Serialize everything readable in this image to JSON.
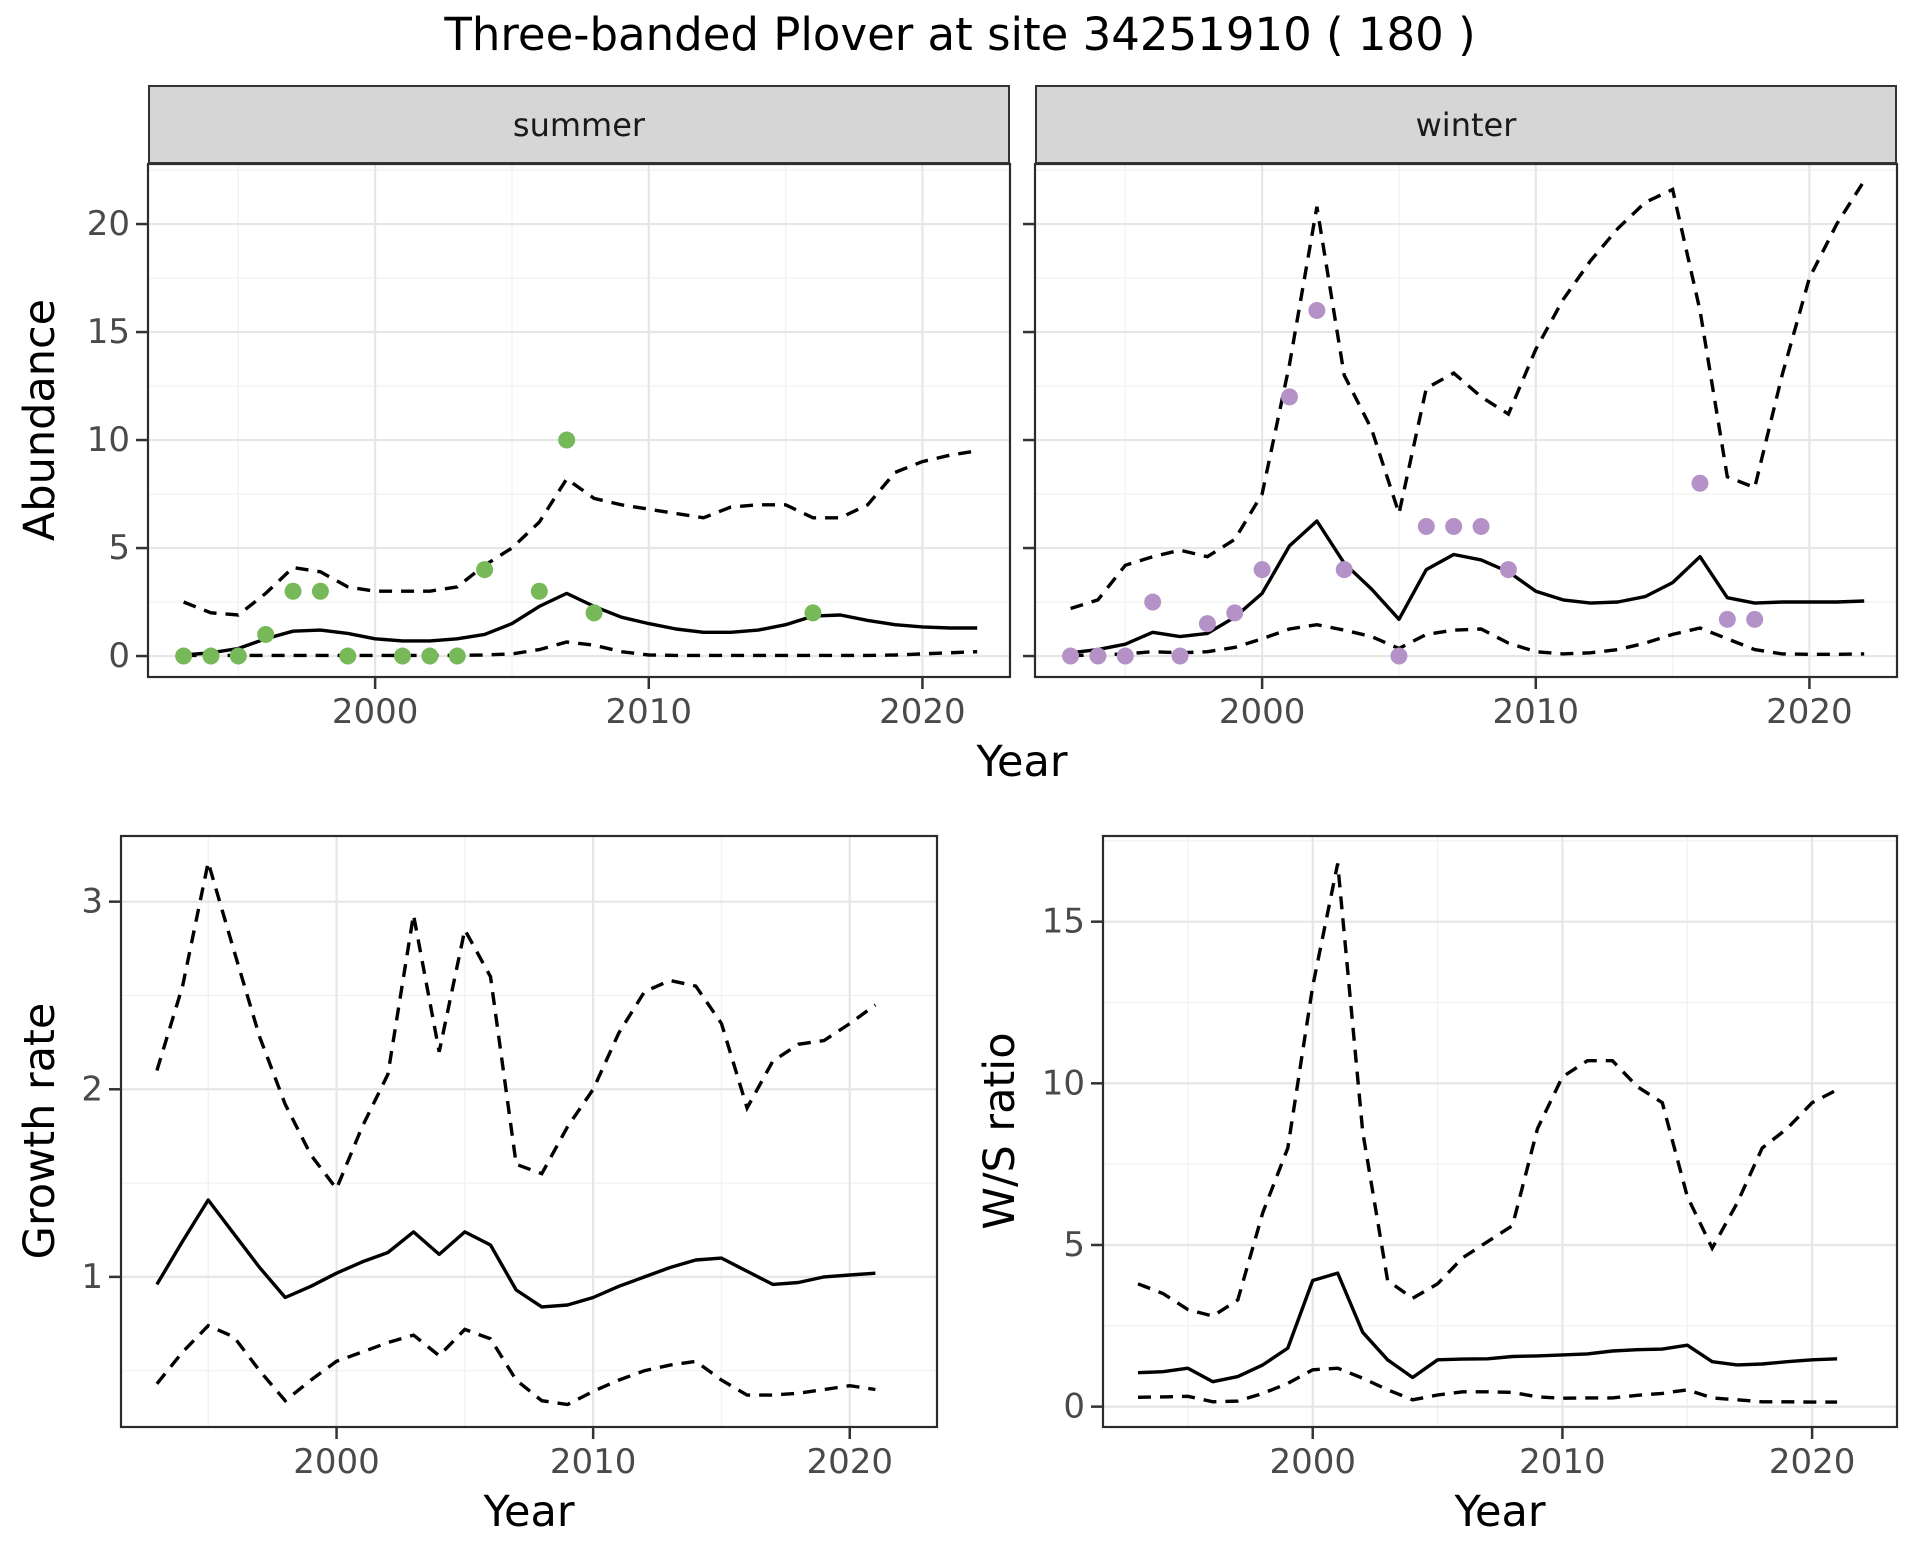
{
  "title": "Three-banded Plover at site 34251910 ( 180 )",
  "labels": {
    "facet_summer": "summer",
    "facet_winter": "winter",
    "abundance": "Abundance",
    "growth_rate": "Growth rate",
    "ws_ratio": "W/S ratio",
    "year": "Year"
  },
  "colors": {
    "line": "#000000",
    "summer_points": "#77b958",
    "winter_points": "#b492c7",
    "strip_bg": "#d6d6d6",
    "strip_border": "#333333",
    "panel_border": "#2b2b2b",
    "grid_major": "#e6e6e6",
    "grid_minor": "#f2f2f2",
    "tick_mark": "#333333",
    "tick_text": "#4a4a4a"
  },
  "chart_data": [
    {
      "id": "abundance-summer",
      "type": "line",
      "facet": "summer",
      "xlabel": "Year",
      "ylabel": "Abundance",
      "xlim": [
        1991.7,
        2023.2
      ],
      "ylim": [
        -0.97,
        22.78
      ],
      "x_ticks": [
        2000,
        2010,
        2020
      ],
      "y_ticks": [
        0,
        5,
        10,
        15,
        20
      ],
      "x_minor": [
        1995,
        2005,
        2015
      ],
      "y_minor": [
        2.5,
        7.5,
        12.5,
        17.5,
        22.5
      ],
      "point_color": "#77b958",
      "years": [
        1993,
        1994,
        1995,
        1996,
        1997,
        1998,
        1999,
        2000,
        2001,
        2002,
        2003,
        2004,
        2005,
        2006,
        2007,
        2008,
        2009,
        2010,
        2011,
        2012,
        2013,
        2014,
        2015,
        2016,
        2017,
        2018,
        2019,
        2020,
        2021,
        2022
      ],
      "median": [
        0.05,
        0.15,
        0.35,
        0.8,
        1.15,
        1.2,
        1.05,
        0.8,
        0.7,
        0.7,
        0.8,
        1.0,
        1.5,
        2.3,
        2.9,
        2.3,
        1.8,
        1.5,
        1.25,
        1.1,
        1.1,
        1.2,
        1.45,
        1.85,
        1.9,
        1.65,
        1.45,
        1.35,
        1.3,
        1.3
      ],
      "upper": [
        2.5,
        2.0,
        1.9,
        2.9,
        4.1,
        3.9,
        3.2,
        3.0,
        3.0,
        3.0,
        3.2,
        4.2,
        5.0,
        6.2,
        8.2,
        7.3,
        7.0,
        6.8,
        6.6,
        6.4,
        6.9,
        7.0,
        7.0,
        6.4,
        6.4,
        7.0,
        8.5,
        9.0,
        9.3,
        9.5
      ],
      "lower": [
        0.03,
        0.03,
        0.03,
        0.03,
        0.03,
        0.03,
        0.03,
        0.03,
        0.03,
        0.03,
        0.03,
        0.05,
        0.1,
        0.3,
        0.65,
        0.5,
        0.2,
        0.05,
        0.03,
        0.03,
        0.03,
        0.03,
        0.03,
        0.03,
        0.03,
        0.03,
        0.05,
        0.1,
        0.15,
        0.2
      ],
      "points": [
        [
          1993,
          0
        ],
        [
          1994,
          0
        ],
        [
          1995,
          0
        ],
        [
          1996,
          1
        ],
        [
          1997,
          3
        ],
        [
          1998,
          3
        ],
        [
          1999,
          0
        ],
        [
          2001,
          0
        ],
        [
          2002,
          0
        ],
        [
          2003,
          0
        ],
        [
          2004,
          4
        ],
        [
          2006,
          3
        ],
        [
          2007,
          10
        ],
        [
          2008,
          2
        ],
        [
          2016,
          2
        ]
      ]
    },
    {
      "id": "abundance-winter",
      "type": "line",
      "facet": "winter",
      "xlabel": "Year",
      "ylabel": "Abundance",
      "xlim": [
        1991.7,
        2023.2
      ],
      "ylim": [
        -0.97,
        22.78
      ],
      "x_ticks": [
        2000,
        2010,
        2020
      ],
      "y_ticks": [
        0,
        5,
        10,
        15,
        20
      ],
      "x_minor": [
        1995,
        2005,
        2015
      ],
      "y_minor": [
        2.5,
        7.5,
        12.5,
        17.5,
        22.5
      ],
      "point_color": "#b492c7",
      "years": [
        1993,
        1994,
        1995,
        1996,
        1997,
        1998,
        1999,
        2000,
        2001,
        2002,
        2003,
        2004,
        2005,
        2006,
        2007,
        2008,
        2009,
        2010,
        2011,
        2012,
        2013,
        2014,
        2015,
        2016,
        2017,
        2018,
        2019,
        2020,
        2021,
        2022
      ],
      "median": [
        0.15,
        0.3,
        0.55,
        1.1,
        0.9,
        1.05,
        1.8,
        2.9,
        5.1,
        6.25,
        4.3,
        3.1,
        1.7,
        4.0,
        4.7,
        4.45,
        3.9,
        3.0,
        2.6,
        2.45,
        2.5,
        2.75,
        3.4,
        4.6,
        2.7,
        2.45,
        2.5,
        2.5,
        2.5,
        2.55
      ],
      "upper": [
        2.2,
        2.6,
        4.2,
        4.6,
        4.9,
        4.6,
        5.4,
        7.5,
        13.5,
        20.8,
        13.0,
        10.5,
        6.6,
        12.4,
        13.1,
        12.0,
        11.2,
        14.2,
        16.5,
        18.3,
        19.8,
        21.0,
        21.6,
        16.0,
        8.3,
        7.8,
        13.0,
        17.5,
        20.0,
        22.0
      ],
      "lower": [
        0.02,
        0.05,
        0.1,
        0.2,
        0.15,
        0.2,
        0.4,
        0.8,
        1.25,
        1.45,
        1.2,
        0.9,
        0.35,
        1.0,
        1.2,
        1.25,
        0.6,
        0.2,
        0.1,
        0.15,
        0.3,
        0.6,
        1.0,
        1.3,
        0.8,
        0.3,
        0.1,
        0.08,
        0.08,
        0.1
      ],
      "points": [
        [
          1993,
          0
        ],
        [
          1994,
          0
        ],
        [
          1995,
          0
        ],
        [
          1996,
          2.5
        ],
        [
          1997,
          0
        ],
        [
          1998,
          1.5
        ],
        [
          1999,
          2
        ],
        [
          2000,
          4
        ],
        [
          2001,
          12
        ],
        [
          2002,
          16
        ],
        [
          2003,
          4
        ],
        [
          2005,
          0
        ],
        [
          2006,
          6
        ],
        [
          2007,
          6
        ],
        [
          2008,
          6
        ],
        [
          2009,
          4
        ],
        [
          2016,
          8
        ],
        [
          2017,
          1.7
        ],
        [
          2018,
          1.7
        ]
      ]
    },
    {
      "id": "growth-rate",
      "type": "line",
      "facet": null,
      "xlabel": "Year",
      "ylabel": "Growth rate",
      "xlim": [
        1991.6,
        2023.4
      ],
      "ylim": [
        0.2,
        3.35
      ],
      "x_ticks": [
        2000,
        2010,
        2020
      ],
      "y_ticks": [
        1,
        2,
        3
      ],
      "x_minor": [
        1995,
        2005,
        2015
      ],
      "y_minor": [
        0.5,
        1.5,
        2.5
      ],
      "point_color": null,
      "years": [
        1993,
        1994,
        1995,
        1996,
        1997,
        1998,
        1999,
        2000,
        2001,
        2002,
        2003,
        2004,
        2005,
        2006,
        2007,
        2008,
        2009,
        2010,
        2011,
        2012,
        2013,
        2014,
        2015,
        2016,
        2017,
        2018,
        2019,
        2020,
        2021
      ],
      "median": [
        0.96,
        1.19,
        1.41,
        1.23,
        1.05,
        0.89,
        0.95,
        1.02,
        1.08,
        1.13,
        1.24,
        1.12,
        1.24,
        1.17,
        0.93,
        0.84,
        0.85,
        0.89,
        0.95,
        1.0,
        1.05,
        1.09,
        1.1,
        1.03,
        0.96,
        0.97,
        1.0,
        1.01,
        1.02
      ],
      "upper": [
        2.1,
        2.55,
        3.21,
        2.74,
        2.28,
        1.92,
        1.65,
        1.47,
        1.8,
        2.08,
        2.93,
        2.2,
        2.85,
        2.6,
        1.6,
        1.55,
        1.8,
        2.0,
        2.3,
        2.52,
        2.58,
        2.55,
        2.35,
        1.9,
        2.15,
        2.24,
        2.26,
        2.35,
        2.45
      ],
      "lower": [
        0.43,
        0.6,
        0.74,
        0.68,
        0.5,
        0.34,
        0.45,
        0.55,
        0.6,
        0.65,
        0.69,
        0.58,
        0.72,
        0.67,
        0.45,
        0.34,
        0.32,
        0.39,
        0.45,
        0.5,
        0.53,
        0.55,
        0.45,
        0.37,
        0.37,
        0.38,
        0.4,
        0.42,
        0.4
      ],
      "points": []
    },
    {
      "id": "ws-ratio",
      "type": "line",
      "facet": null,
      "xlabel": "Year",
      "ylabel": "W/S ratio",
      "xlim": [
        1991.6,
        2023.4
      ],
      "ylim": [
        -0.63,
        17.65
      ],
      "x_ticks": [
        2000,
        2010,
        2020
      ],
      "y_ticks": [
        0,
        5,
        10,
        15
      ],
      "x_minor": [
        1995,
        2005,
        2015
      ],
      "y_minor": [
        2.5,
        7.5,
        12.5,
        17.5
      ],
      "point_color": null,
      "years": [
        1993,
        1994,
        1995,
        1996,
        1997,
        1998,
        1999,
        2000,
        2001,
        2002,
        2003,
        2004,
        2005,
        2006,
        2007,
        2008,
        2009,
        2010,
        2011,
        2012,
        2013,
        2014,
        2015,
        2016,
        2017,
        2018,
        2019,
        2020,
        2021
      ],
      "median": [
        1.05,
        1.08,
        1.19,
        0.77,
        0.93,
        1.29,
        1.81,
        3.9,
        4.13,
        2.3,
        1.45,
        0.9,
        1.45,
        1.47,
        1.48,
        1.55,
        1.57,
        1.6,
        1.63,
        1.72,
        1.76,
        1.78,
        1.9,
        1.39,
        1.29,
        1.32,
        1.39,
        1.45,
        1.48
      ],
      "upper": [
        3.8,
        3.5,
        3.0,
        2.8,
        3.3,
        6.0,
        8.0,
        13.0,
        16.8,
        8.5,
        3.9,
        3.35,
        3.8,
        4.6,
        5.1,
        5.6,
        8.6,
        10.2,
        10.7,
        10.7,
        9.9,
        9.4,
        6.5,
        4.9,
        6.3,
        8.0,
        8.6,
        9.4,
        9.8
      ],
      "lower": [
        0.29,
        0.3,
        0.32,
        0.15,
        0.17,
        0.41,
        0.72,
        1.14,
        1.19,
        0.88,
        0.52,
        0.21,
        0.36,
        0.46,
        0.46,
        0.44,
        0.3,
        0.26,
        0.27,
        0.27,
        0.35,
        0.41,
        0.52,
        0.27,
        0.21,
        0.15,
        0.15,
        0.14,
        0.14
      ],
      "points": []
    }
  ]
}
